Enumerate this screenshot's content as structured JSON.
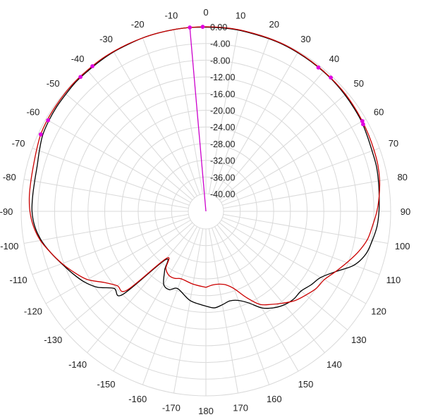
{
  "chart_data": {
    "type": "line",
    "coordinate_system": "polar",
    "angle_direction": "clockwise",
    "angle_zero": "top",
    "angular_tick_labels": [
      {
        "angle": 0,
        "label": "0"
      },
      {
        "angle": 10,
        "label": "10"
      },
      {
        "angle": 20,
        "label": "20"
      },
      {
        "angle": 30,
        "label": "30"
      },
      {
        "angle": 40,
        "label": "40"
      },
      {
        "angle": 50,
        "label": "50"
      },
      {
        "angle": 60,
        "label": "60"
      },
      {
        "angle": 70,
        "label": "70"
      },
      {
        "angle": 80,
        "label": "80"
      },
      {
        "angle": 90,
        "label": "90"
      },
      {
        "angle": 100,
        "label": "100"
      },
      {
        "angle": 110,
        "label": "110"
      },
      {
        "angle": 120,
        "label": "120"
      },
      {
        "angle": 130,
        "label": "130"
      },
      {
        "angle": 140,
        "label": "140"
      },
      {
        "angle": 150,
        "label": "150"
      },
      {
        "angle": 160,
        "label": "160"
      },
      {
        "angle": 170,
        "label": "170"
      },
      {
        "angle": 180,
        "label": "180"
      },
      {
        "angle": -170,
        "label": "-170"
      },
      {
        "angle": -160,
        "label": "-160"
      },
      {
        "angle": -150,
        "label": "-150"
      },
      {
        "angle": -140,
        "label": "-140"
      },
      {
        "angle": -130,
        "label": "-130"
      },
      {
        "angle": -120,
        "label": "-120"
      },
      {
        "angle": -110,
        "label": "-110"
      },
      {
        "angle": -100,
        "label": "-100"
      },
      {
        "angle": -90,
        "label": "-90"
      },
      {
        "angle": -80,
        "label": "-80"
      },
      {
        "angle": -70,
        "label": "-70"
      },
      {
        "angle": -60,
        "label": "-60"
      },
      {
        "angle": -50,
        "label": "-50"
      },
      {
        "angle": -40,
        "label": "-40"
      },
      {
        "angle": -30,
        "label": "-30"
      },
      {
        "angle": -20,
        "label": "-20"
      },
      {
        "angle": -10,
        "label": "-10"
      }
    ],
    "radial_tick_labels": [
      "0.00",
      "-4.00",
      "-8.00",
      "-12.00",
      "-16.00",
      "-20.00",
      "-24.00",
      "-28.00",
      "-32.00",
      "-36.00",
      "-40.00"
    ],
    "radial_range": [
      -40,
      0
    ],
    "grid": true,
    "series": [
      {
        "color": "#000000",
        "points": [
          [
            -180,
            -21.5
          ],
          [
            -170,
            -22.5
          ],
          [
            -160,
            -24.5
          ],
          [
            -155,
            -23.5
          ],
          [
            -150,
            -24.0
          ],
          [
            -145,
            -27.0
          ],
          [
            -140,
            -29.0
          ],
          [
            -135,
            -16.0
          ],
          [
            -130,
            -15.5
          ],
          [
            -125,
            -12.5
          ],
          [
            -120,
            -10.5
          ],
          [
            -115,
            -9.0
          ],
          [
            -110,
            -7.5
          ],
          [
            -105,
            -5.8
          ],
          [
            -100,
            -4.2
          ],
          [
            -95,
            -3.1
          ],
          [
            -90,
            -2.6
          ],
          [
            -85,
            -2.6
          ],
          [
            -80,
            -2.6
          ],
          [
            -75,
            -2.4
          ],
          [
            -70,
            -1.8
          ],
          [
            -65,
            -1.1
          ],
          [
            -60,
            -0.8
          ],
          [
            -55,
            -0.6
          ],
          [
            -50,
            -0.5
          ],
          [
            -45,
            -0.3
          ],
          [
            -40,
            -0.3
          ],
          [
            -35,
            -0.2
          ],
          [
            -30,
            -0.1
          ],
          [
            -25,
            -0.1
          ],
          [
            -20,
            0.0
          ],
          [
            -15,
            0.0
          ],
          [
            -10,
            0.0
          ],
          [
            -5,
            0.0
          ],
          [
            0,
            -0.1
          ],
          [
            5,
            -0.1
          ],
          [
            10,
            -0.1
          ],
          [
            15,
            -0.2
          ],
          [
            20,
            -0.2
          ],
          [
            25,
            -0.2
          ],
          [
            30,
            -0.3
          ],
          [
            35,
            -0.4
          ],
          [
            40,
            -0.5
          ],
          [
            45,
            -0.6
          ],
          [
            50,
            -0.8
          ],
          [
            55,
            -1.0
          ],
          [
            60,
            -1.2
          ],
          [
            65,
            -1.6
          ],
          [
            70,
            -1.9
          ],
          [
            75,
            -2.0
          ],
          [
            80,
            -2.3
          ],
          [
            85,
            -2.6
          ],
          [
            90,
            -2.8
          ],
          [
            95,
            -3.1
          ],
          [
            100,
            -3.8
          ],
          [
            105,
            -4.6
          ],
          [
            110,
            -6.5
          ],
          [
            115,
            -10.0
          ],
          [
            120,
            -12.5
          ],
          [
            125,
            -13.5
          ],
          [
            130,
            -14.5
          ],
          [
            135,
            -14.5
          ],
          [
            140,
            -15.0
          ],
          [
            145,
            -16.0
          ],
          [
            150,
            -17.5
          ],
          [
            155,
            -20.0
          ],
          [
            160,
            -21.5
          ],
          [
            165,
            -22.0
          ],
          [
            170,
            -21.5
          ],
          [
            175,
            -21.0
          ],
          [
            180,
            -21.5
          ]
        ]
      },
      {
        "color": "#cc0000",
        "points": [
          [
            -180,
            -26.0
          ],
          [
            -170,
            -26.5
          ],
          [
            -160,
            -27.0
          ],
          [
            -155,
            -26.5
          ],
          [
            -150,
            -26.5
          ],
          [
            -145,
            -27.5
          ],
          [
            -140,
            -29.5
          ],
          [
            -135,
            -17.5
          ],
          [
            -130,
            -16.5
          ],
          [
            -125,
            -14.5
          ],
          [
            -120,
            -11.5
          ],
          [
            -115,
            -9.5
          ],
          [
            -110,
            -7.6
          ],
          [
            -105,
            -5.8
          ],
          [
            -100,
            -4.0
          ],
          [
            -95,
            -2.8
          ],
          [
            -90,
            -2.1
          ],
          [
            -85,
            -1.8
          ],
          [
            -80,
            -1.7
          ],
          [
            -75,
            -1.5
          ],
          [
            -70,
            -1.1
          ],
          [
            -65,
            -0.6
          ],
          [
            -60,
            -0.4
          ],
          [
            -55,
            -0.3
          ],
          [
            -50,
            -0.2
          ],
          [
            -45,
            -0.1
          ],
          [
            -40,
            -0.1
          ],
          [
            -35,
            0.0
          ],
          [
            -30,
            0.0
          ],
          [
            -25,
            0.0
          ],
          [
            -20,
            0.0
          ],
          [
            -15,
            0.0
          ],
          [
            -10,
            0.0
          ],
          [
            -5,
            0.0
          ],
          [
            0,
            0.0
          ],
          [
            5,
            0.0
          ],
          [
            10,
            0.0
          ],
          [
            15,
            -0.1
          ],
          [
            20,
            -0.1
          ],
          [
            25,
            -0.1
          ],
          [
            30,
            -0.2
          ],
          [
            35,
            -0.3
          ],
          [
            40,
            -0.4
          ],
          [
            45,
            -0.5
          ],
          [
            50,
            -0.6
          ],
          [
            55,
            -0.8
          ],
          [
            60,
            -1.0
          ],
          [
            65,
            -1.2
          ],
          [
            70,
            -1.4
          ],
          [
            75,
            -1.6
          ],
          [
            80,
            -2.0
          ],
          [
            85,
            -2.6
          ],
          [
            90,
            -3.3
          ],
          [
            95,
            -4.2
          ],
          [
            100,
            -5.0
          ],
          [
            105,
            -6.5
          ],
          [
            110,
            -8.3
          ],
          [
            115,
            -10.0
          ],
          [
            120,
            -11.5
          ],
          [
            125,
            -12.0
          ],
          [
            130,
            -13.0
          ],
          [
            135,
            -14.0
          ],
          [
            140,
            -15.5
          ],
          [
            145,
            -17.0
          ],
          [
            150,
            -18.5
          ],
          [
            155,
            -21.5
          ],
          [
            160,
            -24.5
          ],
          [
            165,
            -26.0
          ],
          [
            170,
            -26.5
          ],
          [
            175,
            -26.5
          ],
          [
            180,
            -26.0
          ]
        ]
      }
    ],
    "markers": [
      {
        "color": "#e000e0",
        "angle": -5,
        "r": 0.0
      },
      {
        "color": "#e000e0",
        "angle": -1,
        "r": 0.0
      },
      {
        "color": "#e000e0",
        "angle": -38,
        "r": -0.1
      },
      {
        "color": "#e000e0",
        "angle": -43,
        "r": -0.2
      },
      {
        "color": "#e000e0",
        "angle": -60,
        "r": -0.6
      },
      {
        "color": "#e000e0",
        "angle": -65,
        "r": -0.6
      },
      {
        "color": "#e000e0",
        "angle": 38,
        "r": -0.5
      },
      {
        "color": "#e000e0",
        "angle": 43,
        "r": -0.4
      },
      {
        "color": "#e000e0",
        "angle": 60,
        "r": -1.0
      },
      {
        "color": "#e000e0",
        "angle": 61,
        "r": -1.2
      }
    ],
    "reference_line": {
      "color": "#cc00cc",
      "angle": -5
    }
  }
}
